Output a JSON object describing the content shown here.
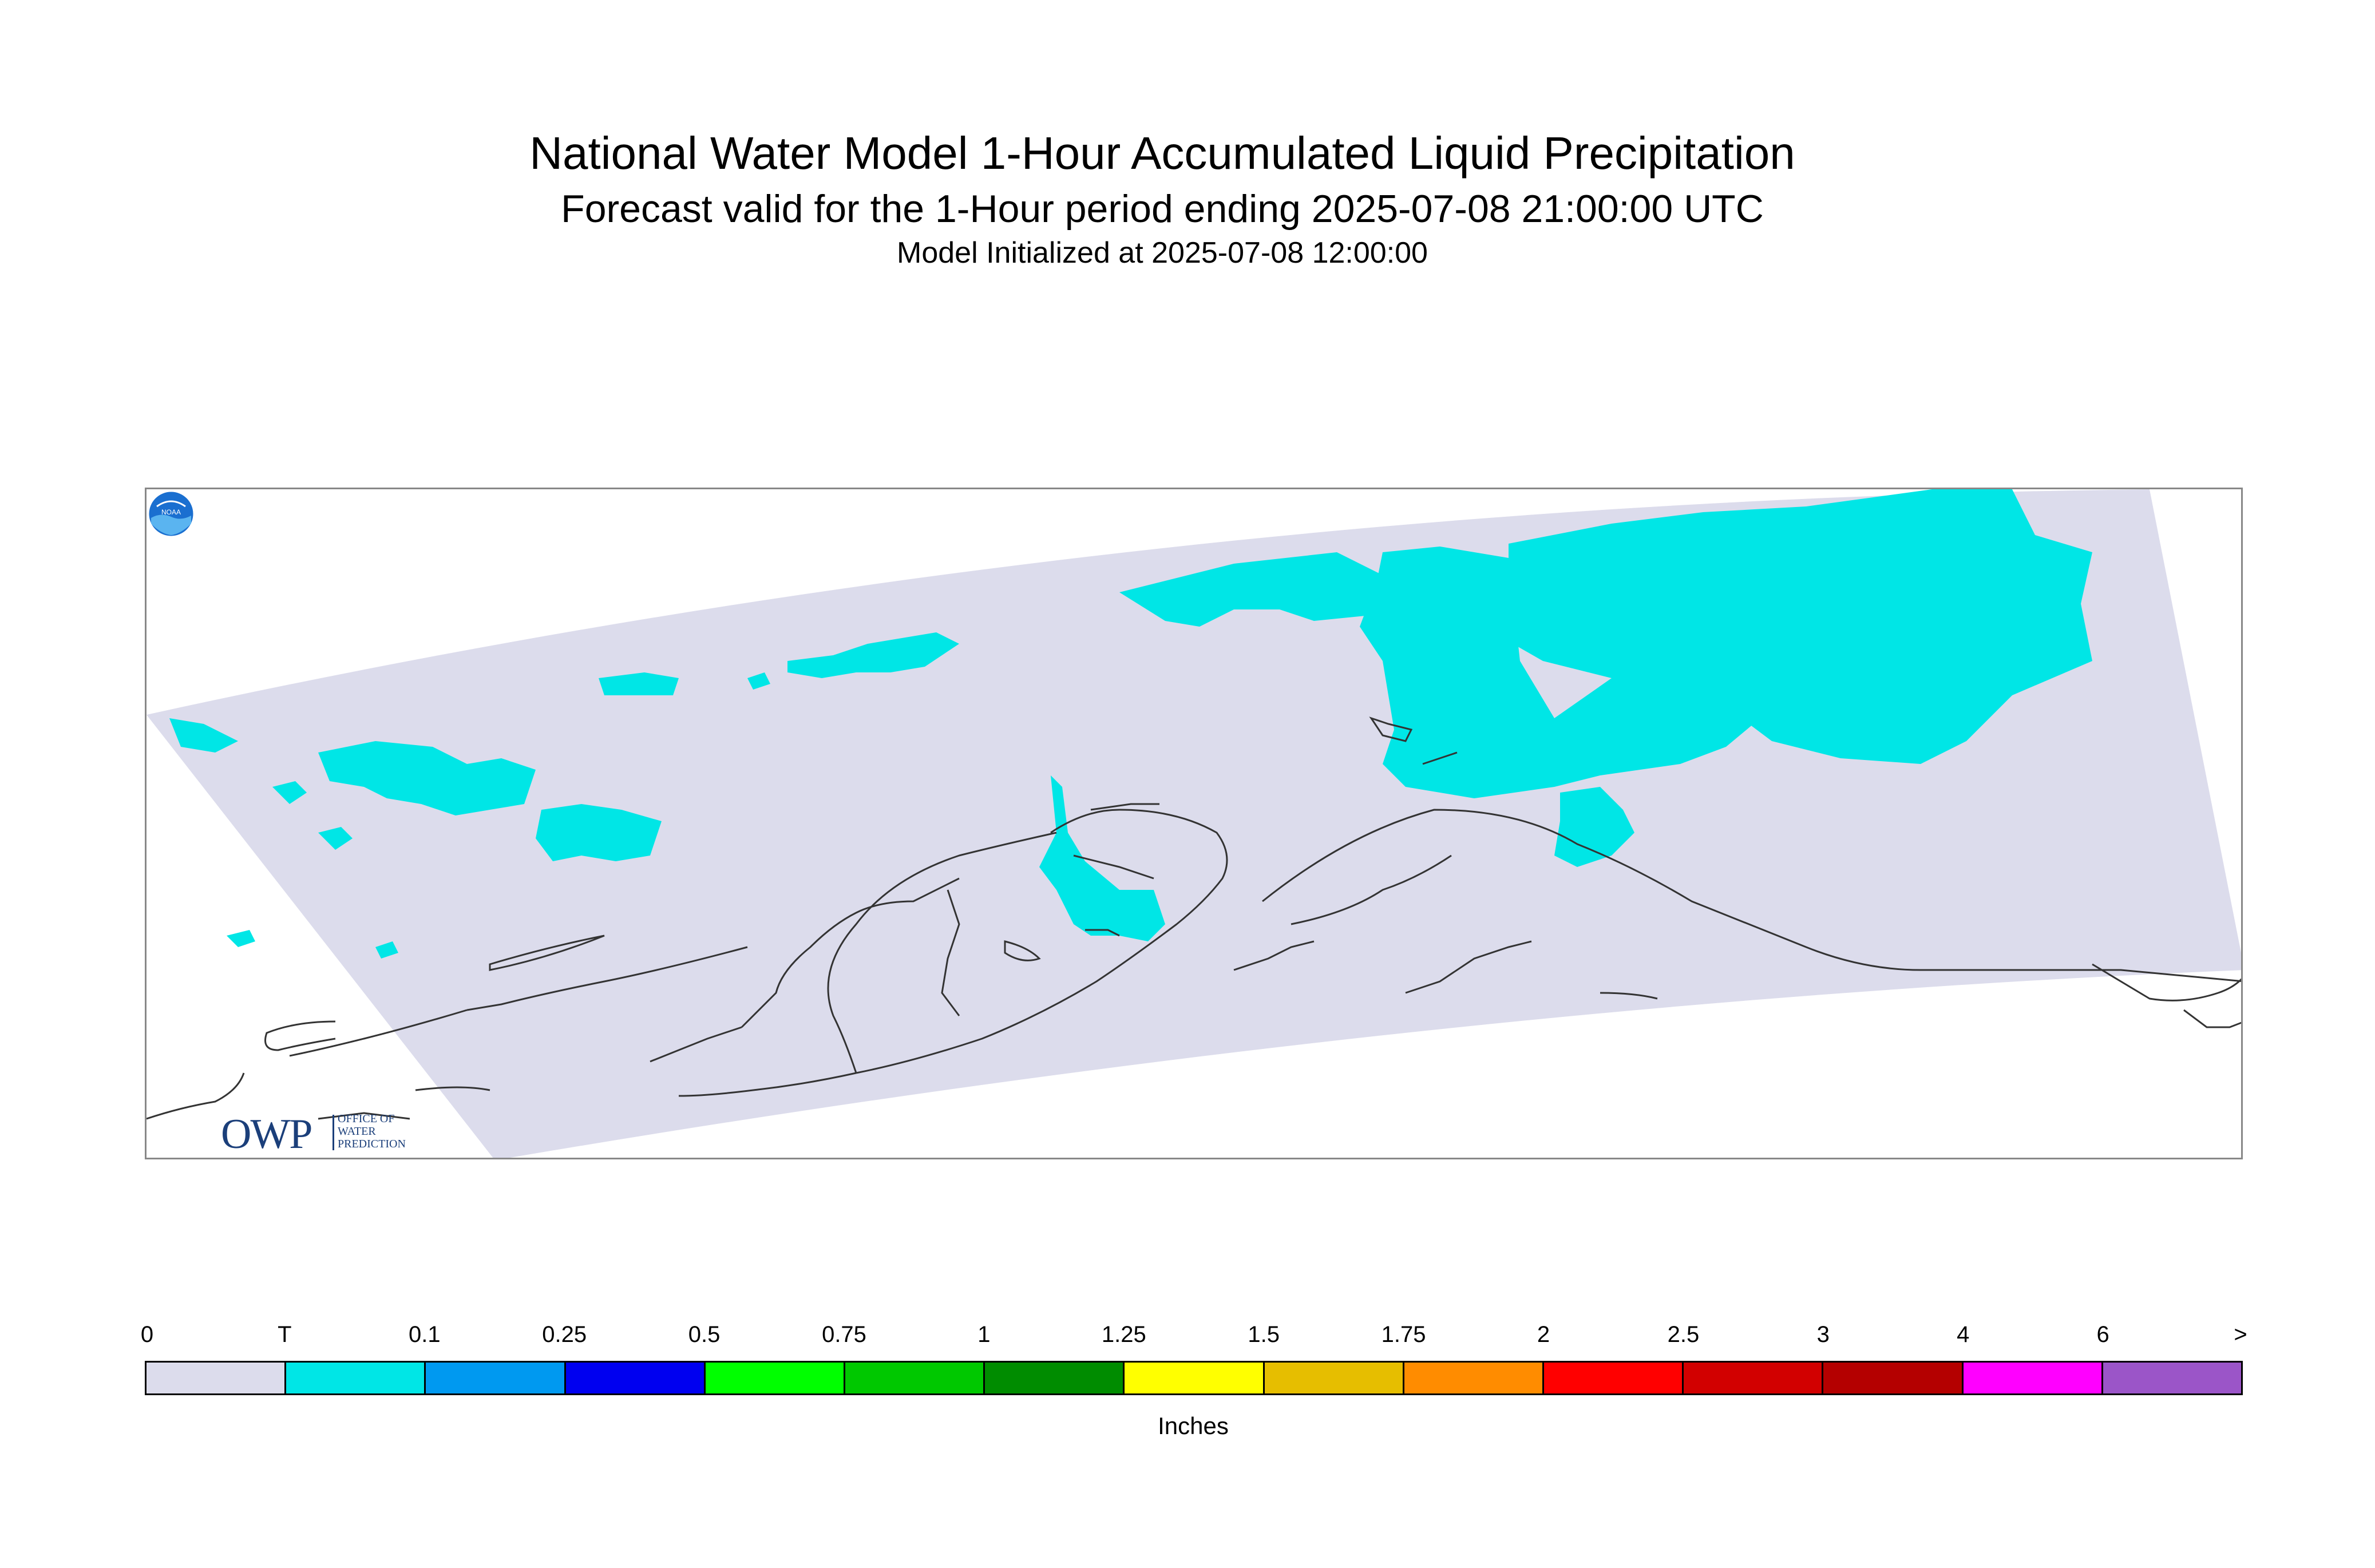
{
  "title": "National Water Model 1-Hour Accumulated Liquid Precipitation",
  "subtitle": "Forecast valid for the 1-Hour period ending 2025-07-08 21:00:00 UTC",
  "init_line": "Model Initialized at 2025-07-08 12:00:00",
  "colors": {
    "domain_fill": "#dcdcec",
    "coastline": "#333333",
    "trace": "#00e6e6"
  },
  "logos": {
    "owp_big": "OWP",
    "owp_small": "OFFICE OF\nWATER\nPREDICTION",
    "noaa_text": "NOAA"
  },
  "legend": {
    "ticks": [
      "0",
      "T",
      "0.1",
      "0.25",
      "0.5",
      "0.75",
      "1",
      "1.25",
      "1.5",
      "1.75",
      "2",
      "2.5",
      "3",
      "4",
      "6",
      ">"
    ],
    "colors": [
      "#dcdcec",
      "#00e6e6",
      "#0099f0",
      "#0000f0",
      "#00ff00",
      "#00c800",
      "#008c00",
      "#ffff00",
      "#e6be00",
      "#ff8c00",
      "#ff0000",
      "#d20000",
      "#b40000",
      "#ff00ff",
      "#9b55c8"
    ],
    "units": "Inches"
  }
}
